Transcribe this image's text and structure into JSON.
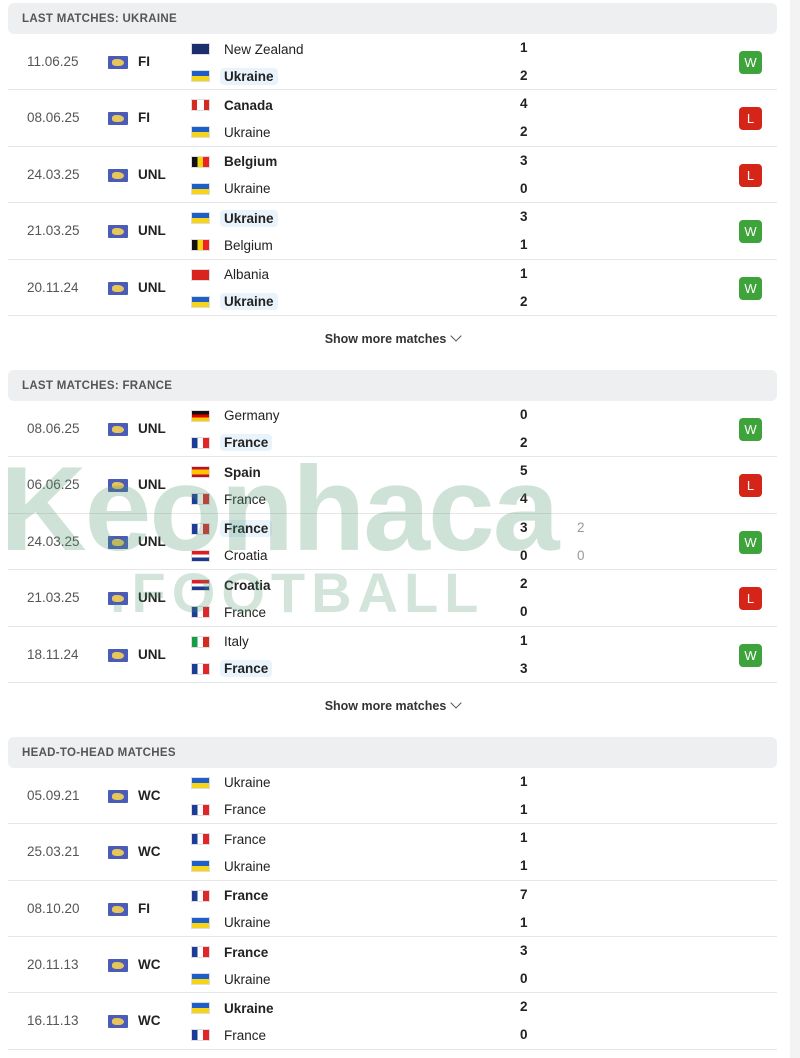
{
  "sections": [
    {
      "title": "LAST MATCHES: UKRAINE",
      "more": "Show more matches",
      "matches": [
        {
          "date": "11.06.25",
          "comp": "FI",
          "home": {
            "name": "New Zealand",
            "flag": "nz",
            "score": "1"
          },
          "away": {
            "name": "Ukraine",
            "flag": "ua",
            "score": "2",
            "bold": true,
            "hl": true
          },
          "result": "W"
        },
        {
          "date": "08.06.25",
          "comp": "FI",
          "home": {
            "name": "Canada",
            "flag": "ca",
            "score": "4",
            "bold": true
          },
          "away": {
            "name": "Ukraine",
            "flag": "ua",
            "score": "2"
          },
          "result": "L"
        },
        {
          "date": "24.03.25",
          "comp": "UNL",
          "home": {
            "name": "Belgium",
            "flag": "be",
            "score": "3",
            "bold": true
          },
          "away": {
            "name": "Ukraine",
            "flag": "ua",
            "score": "0"
          },
          "result": "L"
        },
        {
          "date": "21.03.25",
          "comp": "UNL",
          "home": {
            "name": "Ukraine",
            "flag": "ua",
            "score": "3",
            "bold": true,
            "hl": true
          },
          "away": {
            "name": "Belgium",
            "flag": "be",
            "score": "1"
          },
          "result": "W"
        },
        {
          "date": "20.11.24",
          "comp": "UNL",
          "home": {
            "name": "Albania",
            "flag": "al",
            "score": "1"
          },
          "away": {
            "name": "Ukraine",
            "flag": "ua",
            "score": "2",
            "bold": true,
            "hl": true
          },
          "result": "W"
        }
      ]
    },
    {
      "title": "LAST MATCHES: FRANCE",
      "more": "Show more matches",
      "matches": [
        {
          "date": "08.06.25",
          "comp": "UNL",
          "home": {
            "name": "Germany",
            "flag": "de",
            "score": "0"
          },
          "away": {
            "name": "France",
            "flag": "fr",
            "score": "2",
            "bold": true,
            "hl": true
          },
          "result": "W"
        },
        {
          "date": "06.06.25",
          "comp": "UNL",
          "home": {
            "name": "Spain",
            "flag": "es",
            "score": "5",
            "bold": true
          },
          "away": {
            "name": "France",
            "flag": "fr",
            "score": "4"
          },
          "result": "L"
        },
        {
          "date": "24.03.25",
          "comp": "UNL",
          "home": {
            "name": "France",
            "flag": "fr",
            "score": "3",
            "pen": "2",
            "bold": true,
            "hl": true
          },
          "away": {
            "name": "Croatia",
            "flag": "hr",
            "score": "0",
            "pen": "0"
          },
          "result": "W"
        },
        {
          "date": "21.03.25",
          "comp": "UNL",
          "home": {
            "name": "Croatia",
            "flag": "hr",
            "score": "2",
            "bold": true
          },
          "away": {
            "name": "France",
            "flag": "fr",
            "score": "0"
          },
          "result": "L"
        },
        {
          "date": "18.11.24",
          "comp": "UNL",
          "home": {
            "name": "Italy",
            "flag": "it",
            "score": "1"
          },
          "away": {
            "name": "France",
            "flag": "fr",
            "score": "3",
            "bold": true,
            "hl": true
          },
          "result": "W"
        }
      ]
    },
    {
      "title": "HEAD-TO-HEAD MATCHES",
      "matches": [
        {
          "date": "05.09.21",
          "comp": "WC",
          "home": {
            "name": "Ukraine",
            "flag": "ua",
            "score": "1"
          },
          "away": {
            "name": "France",
            "flag": "fr",
            "score": "1"
          }
        },
        {
          "date": "25.03.21",
          "comp": "WC",
          "home": {
            "name": "France",
            "flag": "fr",
            "score": "1"
          },
          "away": {
            "name": "Ukraine",
            "flag": "ua",
            "score": "1"
          }
        },
        {
          "date": "08.10.20",
          "comp": "FI",
          "home": {
            "name": "France",
            "flag": "fr",
            "score": "7",
            "bold": true
          },
          "away": {
            "name": "Ukraine",
            "flag": "ua",
            "score": "1"
          }
        },
        {
          "date": "20.11.13",
          "comp": "WC",
          "home": {
            "name": "France",
            "flag": "fr",
            "score": "3",
            "bold": true
          },
          "away": {
            "name": "Ukraine",
            "flag": "ua",
            "score": "0"
          }
        },
        {
          "date": "16.11.13",
          "comp": "WC",
          "home": {
            "name": "Ukraine",
            "flag": "ua",
            "score": "2",
            "bold": true
          },
          "away": {
            "name": "France",
            "flag": "fr",
            "score": "0"
          }
        }
      ]
    }
  ],
  "watermark": {
    "line1": "Keonhacai",
    "line2": ".FOOTBALL"
  },
  "colors": {
    "win": "#3ea33b",
    "loss": "#d42518",
    "highlight": "#e9f3fb"
  },
  "icons": {
    "competition": "world-map-icon",
    "show_more": "chevron-down-icon"
  }
}
